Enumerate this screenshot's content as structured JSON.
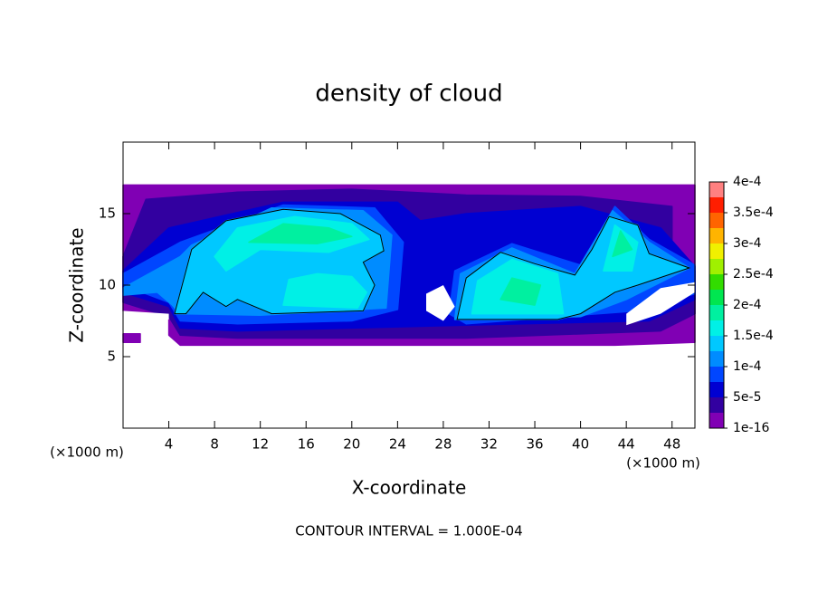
{
  "chart_data": {
    "type": "contour",
    "title": "density of cloud",
    "x_label": "X-coordinate",
    "y_label": "Z-coordinate",
    "x_unit": "(×1000 m)",
    "y_unit": "(×1000 m)",
    "note": "CONTOUR INTERVAL = 1.000E-04",
    "xlim": [
      0,
      50
    ],
    "ylim": [
      0,
      20
    ],
    "xticks": [
      4,
      8,
      12,
      16,
      20,
      24,
      28,
      32,
      36,
      40,
      44,
      48
    ],
    "yticks": [
      5,
      10,
      15
    ],
    "levels": [
      {
        "value": 1e-16,
        "label": "1e-16"
      },
      {
        "value": 5e-05,
        "label": "5e-5"
      },
      {
        "value": 0.0001,
        "label": "1e-4"
      },
      {
        "value": 0.00015,
        "label": "1.5e-4"
      },
      {
        "value": 0.0002,
        "label": "2e-4"
      },
      {
        "value": 0.00025,
        "label": "2.5e-4"
      },
      {
        "value": 0.0003,
        "label": "3e-4"
      },
      {
        "value": 0.00035,
        "label": "3.5e-4"
      },
      {
        "value": 0.0004,
        "label": "4e-4"
      }
    ],
    "colors": [
      "#8000b4",
      "#3200a0",
      "#0000d2",
      "#0046ff",
      "#008cff",
      "#00c8ff",
      "#00f0e6",
      "#00f0a0",
      "#00e650",
      "#32dc00",
      "#a0f000",
      "#f0f000",
      "#ffb400",
      "#ff6400",
      "#ff1e00",
      "#ff8080"
    ]
  }
}
